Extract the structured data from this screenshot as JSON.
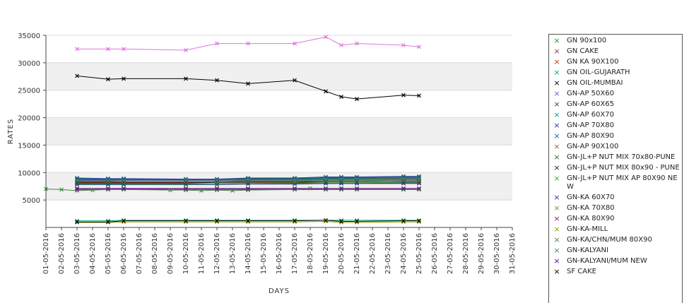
{
  "chart_data": {
    "type": "line",
    "xlabel": "DAYS",
    "ylabel": "RATES",
    "ylim": [
      0,
      35000
    ],
    "yticks": [
      5000,
      10000,
      15000,
      20000,
      25000,
      30000,
      35000
    ],
    "categories": [
      "01-05-2016",
      "02-05-2016",
      "03-05-2016",
      "04-05-2016",
      "05-05-2016",
      "06-05-2016",
      "07-05-2016",
      "08-05-2016",
      "09-05-2016",
      "10-05-2016",
      "11-05-2016",
      "12-05-2016",
      "13-05-2016",
      "14-05-2016",
      "15-05-2016",
      "16-05-2016",
      "17-05-2016",
      "18-05-2016",
      "19-05-2016",
      "20-05-2016",
      "21-05-2016",
      "22-05-2016",
      "23-05-2016",
      "24-05-2016",
      "25-05-2016",
      "26-05-2016",
      "27-05-2016",
      "28-05-2016",
      "29-05-2016",
      "30-05-2016",
      "31-05-2016"
    ],
    "grid": true,
    "legend_position": "right",
    "series": [
      {
        "name": "GN 90x100",
        "color": "#2e8b2e",
        "points": [
          [
            2,
            8400
          ],
          [
            4,
            8400
          ],
          [
            5,
            8500
          ],
          [
            9,
            8500
          ],
          [
            11,
            8500
          ],
          [
            13,
            8500
          ],
          [
            16,
            8600
          ],
          [
            18,
            8600
          ],
          [
            19,
            8600
          ],
          [
            20,
            8600
          ],
          [
            23,
            8700
          ],
          [
            24,
            8700
          ]
        ]
      },
      {
        "name": "GN CAKE",
        "color": "#993366",
        "points": [
          [
            2,
            8000
          ],
          [
            4,
            8000
          ],
          [
            5,
            8000
          ],
          [
            9,
            8000
          ],
          [
            11,
            8000
          ],
          [
            13,
            8000
          ],
          [
            16,
            8000
          ],
          [
            18,
            8000
          ],
          [
            19,
            8000
          ],
          [
            20,
            8000
          ],
          [
            23,
            8000
          ],
          [
            24,
            8000
          ]
        ]
      },
      {
        "name": "GN KA 90X100",
        "color": "#cc3300",
        "points": [
          [
            2,
            8200
          ],
          [
            4,
            8200
          ],
          [
            5,
            8200
          ],
          [
            9,
            8200
          ],
          [
            11,
            8300
          ],
          [
            13,
            8300
          ],
          [
            16,
            8300
          ],
          [
            18,
            8300
          ],
          [
            19,
            8300
          ],
          [
            20,
            8300
          ],
          [
            23,
            8400
          ],
          [
            24,
            8400
          ]
        ]
      },
      {
        "name": "GN OIL-GUJARATH",
        "color": "#00aa88",
        "points": [
          [
            2,
            1200
          ],
          [
            4,
            1200
          ],
          [
            5,
            1300
          ],
          [
            9,
            1300
          ],
          [
            11,
            1300
          ],
          [
            13,
            1300
          ],
          [
            16,
            1300
          ],
          [
            18,
            1300
          ],
          [
            19,
            1300
          ],
          [
            20,
            1300
          ],
          [
            23,
            1300
          ],
          [
            24,
            1300
          ]
        ]
      },
      {
        "name": "GN OIL-MUMBAI",
        "color": "#000000",
        "points": [
          [
            2,
            27600
          ],
          [
            4,
            27000
          ],
          [
            5,
            27100
          ],
          [
            9,
            27100
          ],
          [
            11,
            26800
          ],
          [
            13,
            26200
          ],
          [
            16,
            26800
          ],
          [
            18,
            24800
          ],
          [
            19,
            23800
          ],
          [
            20,
            23400
          ],
          [
            23,
            24100
          ],
          [
            24,
            24000
          ]
        ]
      },
      {
        "name": "GN-AP 50X60",
        "color": "#6666cc",
        "points": [
          [
            2,
            8600
          ],
          [
            4,
            8600
          ],
          [
            5,
            8600
          ],
          [
            9,
            8600
          ],
          [
            11,
            8600
          ],
          [
            13,
            8700
          ],
          [
            16,
            8700
          ],
          [
            18,
            8800
          ],
          [
            19,
            8800
          ],
          [
            20,
            8800
          ],
          [
            23,
            8900
          ],
          [
            24,
            8900
          ]
        ]
      },
      {
        "name": "GN-AP 60X65",
        "color": "#225522",
        "points": [
          [
            2,
            8700
          ],
          [
            4,
            8700
          ],
          [
            5,
            8700
          ],
          [
            9,
            8700
          ],
          [
            11,
            8700
          ],
          [
            13,
            8800
          ],
          [
            16,
            8800
          ],
          [
            18,
            8900
          ],
          [
            19,
            8900
          ],
          [
            20,
            8900
          ],
          [
            23,
            9000
          ],
          [
            24,
            9000
          ]
        ]
      },
      {
        "name": "GN-AP 60X70",
        "color": "#009999",
        "points": [
          [
            2,
            8800
          ],
          [
            4,
            8800
          ],
          [
            5,
            8800
          ],
          [
            9,
            8800
          ],
          [
            11,
            8800
          ],
          [
            13,
            8900
          ],
          [
            16,
            8900
          ],
          [
            18,
            9000
          ],
          [
            19,
            9000
          ],
          [
            20,
            9000
          ],
          [
            23,
            9100
          ],
          [
            24,
            9100
          ]
        ]
      },
      {
        "name": "GN-AP 70X80",
        "color": "#333399",
        "points": [
          [
            2,
            9000
          ],
          [
            4,
            8900
          ],
          [
            5,
            8900
          ],
          [
            9,
            8800
          ],
          [
            11,
            8800
          ],
          [
            13,
            9000
          ],
          [
            16,
            9000
          ],
          [
            18,
            9200
          ],
          [
            19,
            9200
          ],
          [
            20,
            9200
          ],
          [
            23,
            9300
          ],
          [
            24,
            9300
          ]
        ]
      },
      {
        "name": "GN-AP 80X90",
        "color": "#116688",
        "points": [
          [
            2,
            8900
          ],
          [
            4,
            8800
          ],
          [
            5,
            8800
          ],
          [
            9,
            8700
          ],
          [
            11,
            8700
          ],
          [
            13,
            8900
          ],
          [
            16,
            8900
          ],
          [
            18,
            9100
          ],
          [
            19,
            9100
          ],
          [
            20,
            9100
          ],
          [
            23,
            9200
          ],
          [
            24,
            9200
          ]
        ]
      },
      {
        "name": "GN-AP 90X100",
        "color": "#777733",
        "points": [
          [
            2,
            8500
          ],
          [
            4,
            8500
          ],
          [
            5,
            8500
          ],
          [
            9,
            8500
          ],
          [
            11,
            8500
          ],
          [
            13,
            8600
          ],
          [
            16,
            8600
          ],
          [
            18,
            8700
          ],
          [
            19,
            8700
          ],
          [
            20,
            8700
          ],
          [
            23,
            8800
          ],
          [
            24,
            8800
          ]
        ]
      },
      {
        "name": "GN-JL+P NUT MIX 70x80-PUNE",
        "color": "#336633",
        "points": [
          [
            2,
            8300
          ],
          [
            4,
            8300
          ],
          [
            5,
            8300
          ],
          [
            9,
            8300
          ],
          [
            11,
            8300
          ],
          [
            13,
            8400
          ],
          [
            16,
            8400
          ],
          [
            18,
            8500
          ],
          [
            19,
            8500
          ],
          [
            20,
            8500
          ],
          [
            23,
            8600
          ],
          [
            24,
            8600
          ]
        ]
      },
      {
        "name": "GN-JL+P NUT MIX 80x90 - PUNE",
        "color": "#222222",
        "points": [
          [
            2,
            8100
          ],
          [
            4,
            8100
          ],
          [
            5,
            8100
          ],
          [
            9,
            8100
          ],
          [
            11,
            8200
          ],
          [
            13,
            8200
          ],
          [
            16,
            8200
          ],
          [
            18,
            8300
          ],
          [
            19,
            8300
          ],
          [
            20,
            8300
          ],
          [
            23,
            8400
          ],
          [
            24,
            8400
          ]
        ]
      },
      {
        "name": "GN-JL+P NUT MIX AP 80X90 NEW",
        "color": "#33aa33",
        "points": [
          [
            2,
            7900
          ],
          [
            4,
            7900
          ],
          [
            5,
            7900
          ],
          [
            9,
            7900
          ],
          [
            11,
            8000
          ],
          [
            13,
            8000
          ],
          [
            16,
            8100
          ],
          [
            18,
            8100
          ],
          [
            19,
            8100
          ],
          [
            20,
            8100
          ],
          [
            23,
            8200
          ],
          [
            24,
            8200
          ]
        ]
      },
      {
        "name": "GN-KA 60X70",
        "color": "#224488",
        "points": [
          [
            2,
            7800
          ],
          [
            4,
            7800
          ],
          [
            5,
            7800
          ],
          [
            9,
            7800
          ],
          [
            11,
            7800
          ],
          [
            13,
            7900
          ],
          [
            16,
            7900
          ],
          [
            18,
            8000
          ],
          [
            19,
            8000
          ],
          [
            20,
            8000
          ],
          [
            23,
            8100
          ],
          [
            24,
            8100
          ]
        ]
      },
      {
        "name": "GN-KA 70X80",
        "color": "#888855",
        "points": [
          [
            2,
            7000
          ],
          [
            4,
            7000
          ],
          [
            5,
            7000
          ],
          [
            9,
            7000
          ],
          [
            11,
            7000
          ],
          [
            13,
            7000
          ],
          [
            16,
            7000
          ],
          [
            18,
            7000
          ],
          [
            19,
            7000
          ],
          [
            20,
            7000
          ],
          [
            23,
            7000
          ],
          [
            24,
            7000
          ]
        ]
      },
      {
        "name": "GN-KA 80X90",
        "color": "#882288",
        "points": [
          [
            2,
            6900
          ],
          [
            4,
            6900
          ],
          [
            5,
            7000
          ],
          [
            9,
            6900
          ],
          [
            11,
            6900
          ],
          [
            13,
            6900
          ],
          [
            16,
            6900
          ],
          [
            18,
            6900
          ],
          [
            19,
            6900
          ],
          [
            20,
            6900
          ],
          [
            23,
            6900
          ],
          [
            24,
            6900
          ]
        ]
      },
      {
        "name": "GN-KA-MILL",
        "color": "#999900",
        "points": [
          [
            2,
            900
          ],
          [
            4,
            900
          ],
          [
            5,
            1000
          ],
          [
            9,
            1000
          ],
          [
            11,
            1000
          ],
          [
            13,
            1000
          ],
          [
            16,
            1000
          ],
          [
            18,
            1100
          ],
          [
            19,
            900
          ],
          [
            20,
            900
          ],
          [
            23,
            1000
          ],
          [
            24,
            1000
          ]
        ]
      },
      {
        "name": "GN-KA/CHN/MUM 80X90",
        "color": "#448844",
        "points": [
          [
            0,
            7000
          ],
          [
            1,
            6900
          ],
          [
            2,
            6700
          ],
          [
            3,
            6800
          ],
          [
            4,
            6900
          ],
          [
            5,
            6900
          ],
          [
            8,
            6800
          ],
          [
            9,
            6800
          ],
          [
            10,
            6700
          ],
          [
            11,
            6800
          ],
          [
            12,
            6700
          ],
          [
            13,
            6800
          ],
          [
            16,
            6900
          ],
          [
            17,
            7100
          ],
          [
            18,
            6900
          ],
          [
            19,
            6900
          ],
          [
            20,
            6900
          ],
          [
            23,
            6900
          ],
          [
            24,
            6900
          ]
        ]
      },
      {
        "name": "GN-KALYANI",
        "color": "#557777",
        "points": [
          [
            2,
            8500
          ],
          [
            4,
            8500
          ],
          [
            5,
            8500
          ],
          [
            9,
            8500
          ],
          [
            11,
            8500
          ],
          [
            13,
            8500
          ],
          [
            16,
            8500
          ],
          [
            18,
            8600
          ],
          [
            19,
            8600
          ],
          [
            20,
            8600
          ],
          [
            23,
            8600
          ],
          [
            24,
            8600
          ]
        ]
      },
      {
        "name": "GN-KALYANI/MUM NEW",
        "color": "#660099",
        "points": [
          [
            2,
            7100
          ],
          [
            4,
            7100
          ],
          [
            5,
            7100
          ],
          [
            9,
            7100
          ],
          [
            11,
            7100
          ],
          [
            13,
            7100
          ],
          [
            16,
            7100
          ],
          [
            18,
            7100
          ],
          [
            19,
            7100
          ],
          [
            20,
            7100
          ],
          [
            23,
            7100
          ],
          [
            24,
            7100
          ]
        ]
      },
      {
        "name": "SF CAKE",
        "color": "#000000",
        "points": [
          [
            2,
            1000
          ],
          [
            4,
            1000
          ],
          [
            5,
            1200
          ],
          [
            9,
            1200
          ],
          [
            11,
            1200
          ],
          [
            13,
            1200
          ],
          [
            16,
            1200
          ],
          [
            18,
            1300
          ],
          [
            19,
            1100
          ],
          [
            20,
            1100
          ],
          [
            23,
            1200
          ],
          [
            24,
            1200
          ]
        ]
      },
      {
        "name": "",
        "color": "#dd77dd",
        "points": [
          [
            2,
            32500
          ],
          [
            4,
            32500
          ],
          [
            5,
            32500
          ],
          [
            9,
            32300
          ],
          [
            11,
            33500
          ],
          [
            13,
            33500
          ],
          [
            16,
            33500
          ],
          [
            18,
            34700
          ],
          [
            19,
            33200
          ],
          [
            20,
            33500
          ],
          [
            23,
            33200
          ],
          [
            24,
            32900
          ]
        ]
      }
    ]
  }
}
